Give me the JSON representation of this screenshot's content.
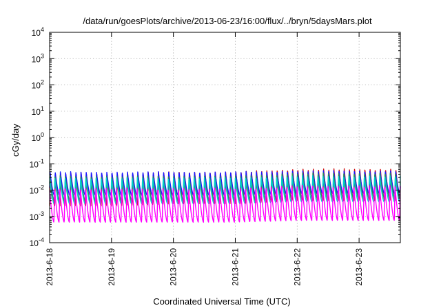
{
  "chart_data": {
    "type": "line",
    "title": "/data/run/goesPlots/archive/2013-06-23/16:00/flux/../bryn/5daysMars.plot",
    "xlabel": "Coordinated Universal Time (UTC)",
    "ylabel": "cGy/day",
    "yscale": "log",
    "ylim": [
      0.0001,
      10000
    ],
    "y_ticks": [
      {
        "base": "10",
        "exp": "-4",
        "value": 0.0001
      },
      {
        "base": "10",
        "exp": "-3",
        "value": 0.001
      },
      {
        "base": "10",
        "exp": "-2",
        "value": 0.01
      },
      {
        "base": "10",
        "exp": "-1",
        "value": 0.1
      },
      {
        "base": "10",
        "exp": "0",
        "value": 1
      },
      {
        "base": "10",
        "exp": "1",
        "value": 10
      },
      {
        "base": "10",
        "exp": "2",
        "value": 100
      },
      {
        "base": "10",
        "exp": "3",
        "value": 1000
      },
      {
        "base": "10",
        "exp": "4",
        "value": 10000
      }
    ],
    "x_ticks": [
      "2013-6-18",
      "2013-6-19",
      "2013-6-20",
      "2013-6-21",
      "2013-6-22",
      "2013-6-23"
    ],
    "xlim": [
      "2013-06-18T00:00",
      "2013-06-23T16:00"
    ],
    "grid": true,
    "legend": "none",
    "oscillation_period_hours": 2,
    "series": [
      {
        "color": "#d01010",
        "peak": [
          0.045,
          0.045,
          0.05,
          0.05,
          0.065,
          0.065
        ],
        "trough": [
          0.0025,
          0.0025,
          0.003,
          0.003,
          0.004,
          0.004
        ]
      },
      {
        "color": "#1a1aff",
        "peak": [
          0.05,
          0.05,
          0.05,
          0.05,
          0.055,
          0.055
        ],
        "trough": [
          0.006,
          0.006,
          0.006,
          0.006,
          0.007,
          0.007
        ]
      },
      {
        "color": "#2e8b57",
        "peak": [
          0.035,
          0.035,
          0.035,
          0.035,
          0.045,
          0.045
        ],
        "trough": [
          0.004,
          0.004,
          0.004,
          0.004,
          0.005,
          0.005
        ]
      },
      {
        "color": "#00d0d0",
        "peak": [
          0.03,
          0.03,
          0.03,
          0.03,
          0.035,
          0.035
        ],
        "trough": [
          0.003,
          0.003,
          0.003,
          0.003,
          0.0035,
          0.0035
        ]
      },
      {
        "color": "#ff00ff",
        "peak": [
          0.012,
          0.012,
          0.012,
          0.012,
          0.015,
          0.015
        ],
        "trough": [
          0.0006,
          0.0006,
          0.0006,
          0.0006,
          0.0007,
          0.0007
        ]
      }
    ]
  }
}
